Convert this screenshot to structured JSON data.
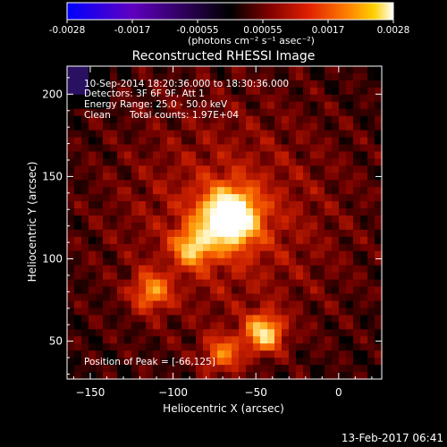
{
  "colorbar": {
    "ticks": [
      "-0.0028",
      "-0.0017",
      "-0.00055",
      "0.00055",
      "0.0017",
      "0.0028"
    ],
    "unit_label": "(photons cm⁻² s⁻¹ asec⁻²)",
    "stops": [
      "#0000ff",
      "#6000c0",
      "#200040",
      "#000000",
      "#800000",
      "#e02000",
      "#ff8000",
      "#ffd000",
      "#ffffff"
    ]
  },
  "annotations": {
    "time_range": "10-Sep-2014 18:20:36.000 to 18:30:36.000",
    "detectors": "Detectors: 3F 6F 9F, Att 1",
    "energy": "Energy Range: 25.0 - 50.0 keV",
    "method": "Clean",
    "counts": "Total counts: 1.97E+04",
    "peak": "Position of Peak = [-66,125]"
  },
  "footer": {
    "timestamp": "13-Feb-2017 06:41"
  },
  "chart_data": {
    "type": "heatmap",
    "title": "Reconstructed RHESSI Image",
    "xlabel": "Heliocentric X (arcsec)",
    "ylabel": "Heliocentric Y (arcsec)",
    "xlim": [
      -164,
      26
    ],
    "ylim": [
      27,
      217
    ],
    "xticks": [
      -150,
      -100,
      -50,
      0
    ],
    "yticks": [
      50,
      100,
      150,
      200
    ],
    "xtick_labels": [
      "−150",
      "−100",
      "−50",
      "0"
    ],
    "ytick_labels": [
      "50",
      "100",
      "150",
      "200"
    ],
    "colorscale_range": [
      -0.0028,
      0.0028
    ],
    "sources": [
      {
        "x": -66,
        "y": 125,
        "intensity": 0.0028
      },
      {
        "x": -45,
        "y": 55,
        "intensity": 0.0019
      },
      {
        "x": -88,
        "y": 107,
        "intensity": 0.0015
      },
      {
        "x": -113,
        "y": 80,
        "intensity": 0.0013
      },
      {
        "x": -70,
        "y": 42,
        "intensity": 0.0012
      }
    ],
    "peak": [
      -66,
      125
    ]
  }
}
